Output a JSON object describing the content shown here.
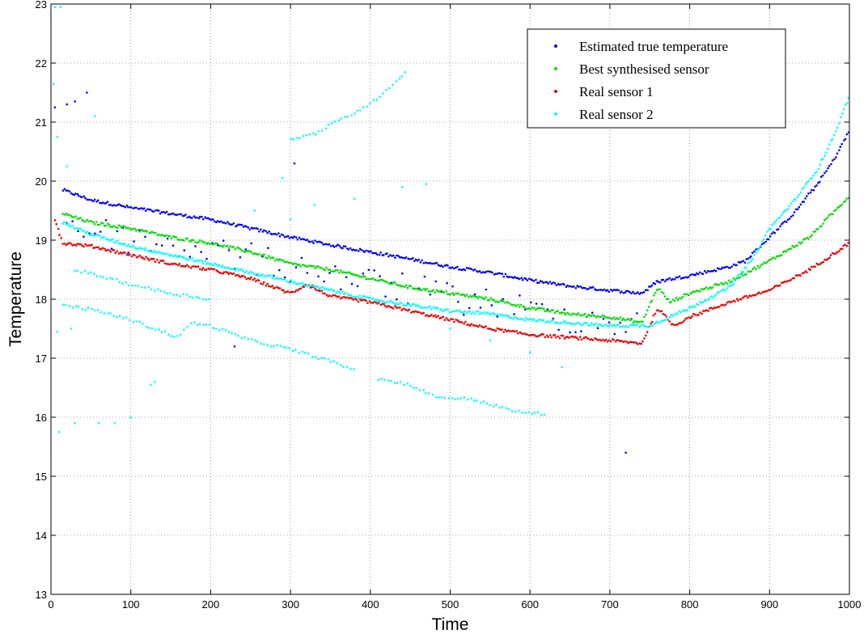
{
  "chart_data": {
    "type": "scatter",
    "title": "",
    "xlabel": "Time",
    "ylabel": "Temperature",
    "xlim": [
      0,
      1000
    ],
    "ylim": [
      13,
      23
    ],
    "xticks": [
      0,
      100,
      200,
      300,
      400,
      500,
      600,
      700,
      800,
      900,
      1000
    ],
    "yticks": [
      13,
      14,
      15,
      16,
      17,
      18,
      19,
      20,
      21,
      22,
      23
    ],
    "grid": true,
    "legend_position": "top-right",
    "series": [
      {
        "name": "Estimated true temperature",
        "color": "#0000ff",
        "trend": [
          [
            15,
            19.85
          ],
          [
            50,
            19.68
          ],
          [
            100,
            19.55
          ],
          [
            150,
            19.45
          ],
          [
            200,
            19.35
          ],
          [
            250,
            19.2
          ],
          [
            300,
            19.05
          ],
          [
            350,
            18.92
          ],
          [
            400,
            18.8
          ],
          [
            450,
            18.68
          ],
          [
            500,
            18.55
          ],
          [
            550,
            18.45
          ],
          [
            600,
            18.32
          ],
          [
            650,
            18.22
          ],
          [
            700,
            18.15
          ],
          [
            740,
            18.1
          ],
          [
            760,
            18.3
          ],
          [
            800,
            18.4
          ],
          [
            850,
            18.55
          ],
          [
            870,
            18.65
          ],
          [
            900,
            19.05
          ],
          [
            930,
            19.45
          ],
          [
            960,
            19.95
          ],
          [
            980,
            20.35
          ],
          [
            1000,
            20.85
          ]
        ],
        "outliers": [
          [
            5,
            21.25
          ],
          [
            20,
            21.3
          ],
          [
            30,
            21.35
          ],
          [
            45,
            21.5
          ],
          [
            305,
            20.3
          ],
          [
            720,
            15.4
          ],
          [
            230,
            17.2
          ]
        ]
      },
      {
        "name": "Best synthesised sensor",
        "color": "#00dd00",
        "trend": [
          [
            15,
            19.45
          ],
          [
            50,
            19.3
          ],
          [
            100,
            19.2
          ],
          [
            150,
            19.05
          ],
          [
            200,
            18.95
          ],
          [
            250,
            18.8
          ],
          [
            300,
            18.6
          ],
          [
            350,
            18.5
          ],
          [
            400,
            18.35
          ],
          [
            450,
            18.2
          ],
          [
            500,
            18.1
          ],
          [
            550,
            18.0
          ],
          [
            600,
            17.85
          ],
          [
            650,
            17.75
          ],
          [
            700,
            17.7
          ],
          [
            740,
            17.6
          ],
          [
            760,
            18.2
          ],
          [
            775,
            17.95
          ],
          [
            800,
            18.1
          ],
          [
            850,
            18.3
          ],
          [
            900,
            18.65
          ],
          [
            950,
            19.05
          ],
          [
            1000,
            19.75
          ]
        ],
        "outliers": []
      },
      {
        "name": "Real sensor 1",
        "color": "#ee0000",
        "trend": [
          [
            5,
            19.35
          ],
          [
            15,
            18.95
          ],
          [
            50,
            18.9
          ],
          [
            100,
            18.75
          ],
          [
            150,
            18.6
          ],
          [
            200,
            18.5
          ],
          [
            250,
            18.35
          ],
          [
            300,
            18.1
          ],
          [
            320,
            18.25
          ],
          [
            350,
            18.05
          ],
          [
            400,
            17.95
          ],
          [
            450,
            17.8
          ],
          [
            500,
            17.65
          ],
          [
            550,
            17.5
          ],
          [
            600,
            17.4
          ],
          [
            650,
            17.35
          ],
          [
            700,
            17.3
          ],
          [
            740,
            17.25
          ],
          [
            760,
            17.85
          ],
          [
            780,
            17.55
          ],
          [
            800,
            17.7
          ],
          [
            850,
            17.95
          ],
          [
            900,
            18.15
          ],
          [
            950,
            18.5
          ],
          [
            1000,
            18.95
          ]
        ],
        "outliers": []
      },
      {
        "name": "Real sensor 2",
        "color": "#00ffff",
        "trend": [
          [
            15,
            19.3
          ],
          [
            50,
            19.1
          ],
          [
            100,
            18.9
          ],
          [
            150,
            18.75
          ],
          [
            200,
            18.6
          ],
          [
            250,
            18.45
          ],
          [
            300,
            18.3
          ],
          [
            350,
            18.15
          ],
          [
            400,
            18.0
          ],
          [
            450,
            17.9
          ],
          [
            500,
            17.8
          ],
          [
            550,
            17.75
          ],
          [
            600,
            17.65
          ],
          [
            650,
            17.6
          ],
          [
            700,
            17.55
          ],
          [
            750,
            17.55
          ],
          [
            800,
            17.85
          ],
          [
            850,
            18.2
          ],
          [
            880,
            18.7
          ],
          [
            900,
            19.2
          ],
          [
            930,
            19.65
          ],
          [
            960,
            20.2
          ],
          [
            980,
            20.75
          ],
          [
            1000,
            21.45
          ]
        ],
        "segments": [
          [
            [
              15,
              17.9
            ],
            [
              60,
              17.8
            ],
            [
              100,
              17.65
            ],
            [
              140,
              17.45
            ],
            [
              160,
              17.35
            ],
            [
              175,
              17.6
            ],
            [
              200,
              17.55
            ],
            [
              250,
              17.3
            ],
            [
              300,
              17.15
            ],
            [
              350,
              16.95
            ],
            [
              380,
              16.8
            ]
          ],
          [
            [
              30,
              18.5
            ],
            [
              60,
              18.4
            ],
            [
              100,
              18.25
            ],
            [
              150,
              18.1
            ],
            [
              200,
              18.0
            ]
          ],
          [
            [
              300,
              20.7
            ],
            [
              330,
              20.8
            ],
            [
              350,
              20.95
            ],
            [
              400,
              21.3
            ],
            [
              420,
              21.55
            ],
            [
              445,
              21.85
            ]
          ],
          [
            [
              410,
              16.65
            ],
            [
              450,
              16.55
            ],
            [
              480,
              16.35
            ],
            [
              530,
              16.3
            ],
            [
              580,
              16.1
            ],
            [
              620,
              16.05
            ]
          ]
        ],
        "outliers": [
          [
            5,
            22.95
          ],
          [
            12,
            22.95
          ],
          [
            3,
            21.65
          ],
          [
            8,
            20.75
          ],
          [
            20,
            20.25
          ],
          [
            55,
            21.1
          ],
          [
            10,
            15.75
          ],
          [
            30,
            15.9
          ],
          [
            60,
            15.9
          ],
          [
            80,
            15.9
          ],
          [
            100,
            16.0
          ],
          [
            130,
            16.6
          ],
          [
            125,
            16.55
          ],
          [
            255,
            19.5
          ],
          [
            290,
            20.05
          ],
          [
            300,
            19.35
          ],
          [
            330,
            19.6
          ],
          [
            380,
            19.7
          ],
          [
            440,
            19.9
          ],
          [
            470,
            19.95
          ],
          [
            8,
            17.45
          ],
          [
            25,
            17.5
          ],
          [
            500,
            17.5
          ],
          [
            550,
            17.3
          ],
          [
            600,
            17.1
          ],
          [
            640,
            16.85
          ]
        ]
      }
    ]
  }
}
